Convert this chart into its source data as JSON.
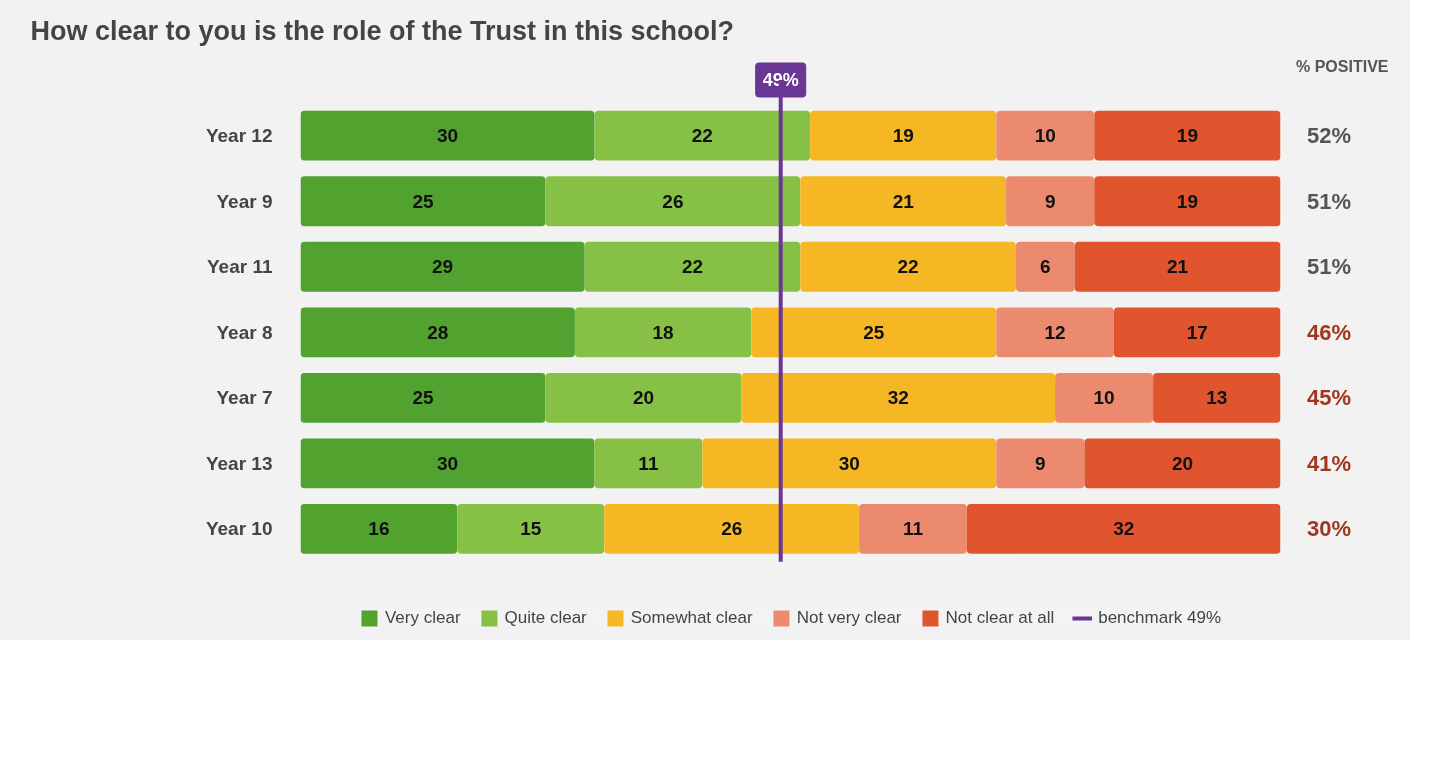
{
  "chart_data": {
    "type": "bar",
    "orientation": "horizontal",
    "stacked": true,
    "title": "How clear to you is the role of the Trust in this school?",
    "categories": [
      "Year 12",
      "Year 9",
      "Year 11",
      "Year 8",
      "Year 7",
      "Year 13",
      "Year 10"
    ],
    "series": [
      {
        "name": "Very clear",
        "color": "#52a22f",
        "values": [
          30,
          25,
          29,
          28,
          25,
          30,
          16
        ]
      },
      {
        "name": "Quite clear",
        "color": "#86c045",
        "values": [
          22,
          26,
          22,
          18,
          20,
          11,
          15
        ]
      },
      {
        "name": "Somewhat clear",
        "color": "#f5b723",
        "values": [
          19,
          21,
          22,
          25,
          32,
          30,
          26
        ]
      },
      {
        "name": "Not very clear",
        "color": "#ec8a6f",
        "values": [
          10,
          9,
          6,
          12,
          10,
          9,
          11
        ]
      },
      {
        "name": "Not clear at all",
        "color": "#e0542e",
        "values": [
          19,
          19,
          21,
          17,
          13,
          20,
          32
        ]
      }
    ],
    "xlim": [
      0,
      100
    ],
    "tick_labels": "y",
    "data_labels": true,
    "legend": "bottom",
    "grid": false,
    "ref_lines": [
      {
        "axis": "x",
        "value": 49,
        "label": "49%",
        "color": "#6a3594"
      }
    ],
    "annotations": [
      "% POSITIVE",
      "52%",
      "51%",
      "51%",
      "46%",
      "45%",
      "41%",
      "30%",
      "benchmark 49%"
    ]
  }
}
